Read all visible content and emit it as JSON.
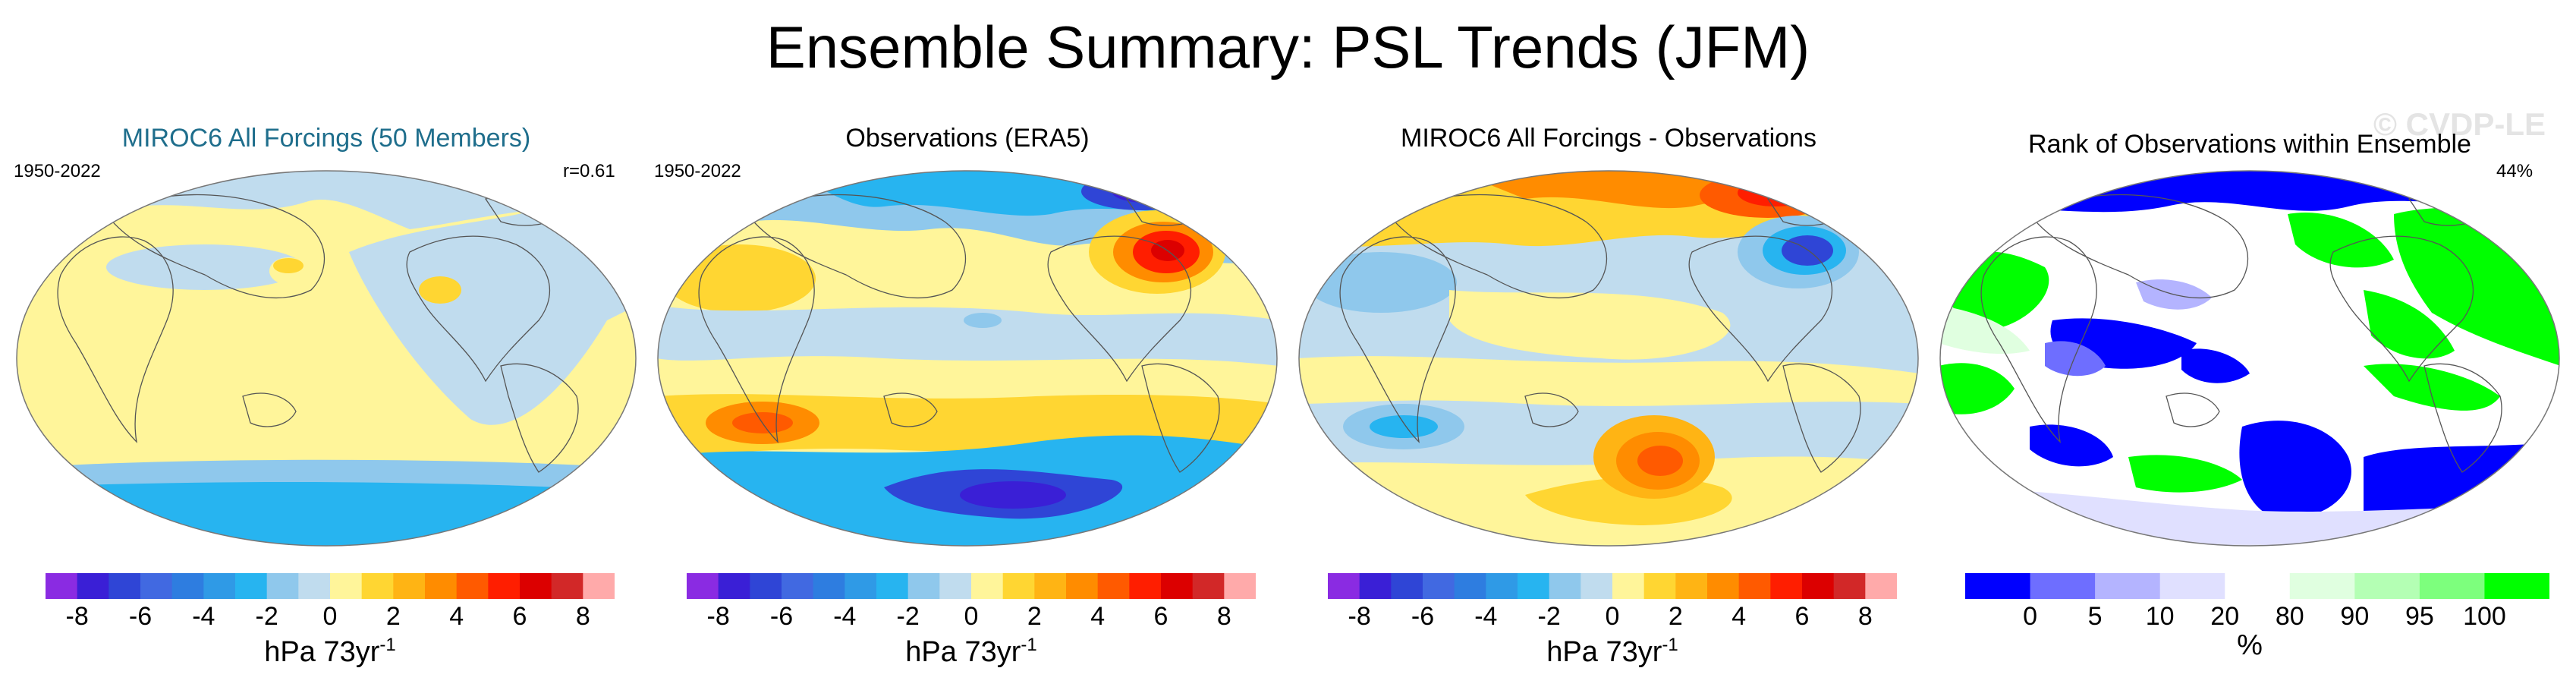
{
  "title": "Ensemble Summary: PSL Trends (JFM)",
  "watermark": "© CVDP-LE",
  "panels": [
    {
      "title": "MIROC6 All Forcings (50 Members)",
      "title_color": "#1f6e8c",
      "left_label": "1950-2022",
      "right_label": "r=0.61"
    },
    {
      "title": "Observations (ERA5)",
      "title_color": "#000000",
      "left_label": "1950-2022",
      "right_label": ""
    },
    {
      "title": "MIROC6 All Forcings - Observations",
      "title_color": "#000000",
      "left_label": "",
      "right_label": ""
    },
    {
      "title": "Rank of Observations within Ensemble",
      "title_color": "#000000",
      "left_label": "",
      "right_label": "44%"
    }
  ],
  "trend_colorbar": {
    "colors": [
      "#8a2be2",
      "#3a1fd6",
      "#2f45d6",
      "#4169e1",
      "#2e7de0",
      "#2f9ae6",
      "#27b4f0",
      "#8fc8ec",
      "#c0dcee",
      "#fff59a",
      "#ffd632",
      "#ffb414",
      "#ff8c00",
      "#ff5a00",
      "#ff1e00",
      "#dc0000",
      "#d22828",
      "#ffaaaa"
    ],
    "tick_labels": [
      "-8",
      "-6",
      "-4",
      "-2",
      "0",
      "2",
      "4",
      "6",
      "8"
    ],
    "units": "hPa 73yr",
    "units_exp": "-1"
  },
  "rank_colorbar": {
    "colors": [
      "#0000ff",
      "#6e6eff",
      "#b4b4ff",
      "#e0e0ff",
      "#ffffff",
      "#e0ffe0",
      "#b4ffb4",
      "#7dff7d",
      "#00ff00"
    ],
    "tick_labels": [
      "0",
      "5",
      "10",
      "20",
      "80",
      "90",
      "95",
      "100"
    ],
    "units": "%"
  }
}
